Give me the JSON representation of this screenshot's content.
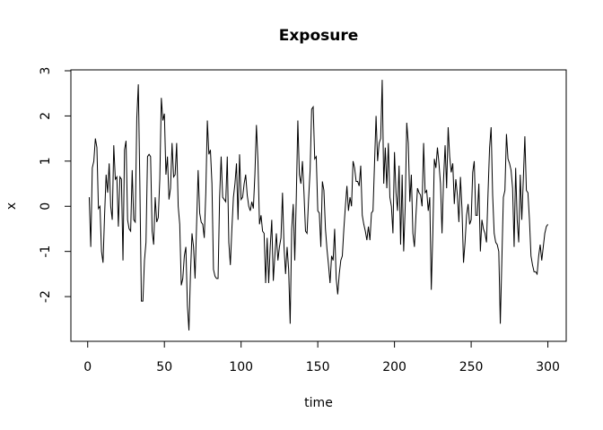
{
  "chart_data": {
    "type": "line",
    "title": "Exposure",
    "x_label": "time",
    "y_label": "x",
    "xlim": [
      -10.96,
      311.96
    ],
    "ylim": [
      -2.99,
      3.02
    ],
    "xticks": [
      0,
      50,
      100,
      150,
      200,
      250,
      300
    ],
    "yticks": [
      -2,
      -1,
      0,
      1,
      2,
      3
    ],
    "color": "#000000",
    "x": [
      1,
      2,
      3,
      4,
      5,
      6,
      7,
      8,
      9,
      10,
      11,
      12,
      13,
      14,
      15,
      16,
      17,
      18,
      19,
      20,
      21,
      22,
      23,
      24,
      25,
      26,
      27,
      28,
      29,
      30,
      31,
      32,
      33,
      34,
      35,
      36,
      37,
      38,
      39,
      40,
      41,
      42,
      43,
      44,
      45,
      46,
      47,
      48,
      49,
      50,
      51,
      52,
      53,
      54,
      55,
      56,
      57,
      58,
      59,
      60,
      61,
      62,
      63,
      64,
      65,
      66,
      67,
      68,
      69,
      70,
      71,
      72,
      73,
      74,
      75,
      76,
      77,
      78,
      79,
      80,
      81,
      82,
      83,
      84,
      85,
      86,
      87,
      88,
      89,
      90,
      91,
      92,
      93,
      94,
      95,
      96,
      97,
      98,
      99,
      100,
      101,
      102,
      103,
      104,
      105,
      106,
      107,
      108,
      109,
      110,
      111,
      112,
      113,
      114,
      115,
      116,
      117,
      118,
      119,
      120,
      121,
      122,
      123,
      124,
      125,
      126,
      127,
      128,
      129,
      130,
      131,
      132,
      133,
      134,
      135,
      136,
      137,
      138,
      139,
      140,
      141,
      142,
      143,
      144,
      145,
      146,
      147,
      148,
      149,
      150,
      151,
      152,
      153,
      154,
      155,
      156,
      157,
      158,
      159,
      160,
      161,
      162,
      163,
      164,
      165,
      166,
      167,
      168,
      169,
      170,
      171,
      172,
      173,
      174,
      175,
      176,
      177,
      178,
      179,
      180,
      181,
      182,
      183,
      184,
      185,
      186,
      187,
      188,
      189,
      190,
      191,
      192,
      193,
      194,
      195,
      196,
      197,
      198,
      199,
      200,
      201,
      202,
      203,
      204,
      205,
      206,
      207,
      208,
      209,
      210,
      211,
      212,
      213,
      214,
      215,
      216,
      217,
      218,
      219,
      220,
      221,
      222,
      223,
      224,
      225,
      226,
      227,
      228,
      229,
      230,
      231,
      232,
      233,
      234,
      235,
      236,
      237,
      238,
      239,
      240,
      241,
      242,
      243,
      244,
      245,
      246,
      247,
      248,
      249,
      250,
      251,
      252,
      253,
      254,
      255,
      256,
      257,
      258,
      259,
      260,
      261,
      262,
      263,
      264,
      265,
      266,
      267,
      268,
      269,
      270,
      271,
      272,
      273,
      274,
      275,
      276,
      277,
      278,
      279,
      280,
      281,
      282,
      283,
      284,
      285,
      286,
      287,
      288,
      289,
      290,
      291,
      292,
      293,
      294,
      295,
      296,
      297,
      298,
      299,
      300
    ],
    "values": [
      0.2,
      -0.9,
      0.85,
      1.0,
      1.5,
      1.3,
      -0.05,
      0.0,
      -1.0,
      -1.25,
      -0.2,
      0.7,
      0.3,
      0.95,
      0.0,
      -0.3,
      1.35,
      0.6,
      0.65,
      -0.45,
      0.65,
      0.6,
      -1.2,
      1.25,
      1.45,
      -0.3,
      -0.5,
      -0.55,
      0.8,
      -0.3,
      -0.35,
      1.95,
      2.7,
      0.5,
      -2.1,
      -2.1,
      -1.2,
      -0.8,
      1.1,
      1.15,
      1.1,
      -0.55,
      -0.85,
      0.2,
      -0.35,
      -0.25,
      0.6,
      2.4,
      1.9,
      2.05,
      0.7,
      1.1,
      0.15,
      0.4,
      1.4,
      0.65,
      0.7,
      1.4,
      0.0,
      -0.4,
      -1.75,
      -1.6,
      -1.1,
      -0.9,
      -2.2,
      -2.75,
      -1.5,
      -0.6,
      -0.9,
      -1.6,
      -0.4,
      0.8,
      -0.15,
      -0.35,
      -0.4,
      -0.7,
      0.3,
      1.9,
      1.15,
      1.25,
      0.5,
      -1.4,
      -1.55,
      -1.6,
      -1.6,
      0.2,
      1.1,
      0.2,
      0.15,
      0.1,
      1.1,
      -0.8,
      -1.3,
      -0.5,
      0.2,
      0.5,
      0.95,
      -0.3,
      1.15,
      0.15,
      0.2,
      0.5,
      0.7,
      0.25,
      0.0,
      -0.1,
      0.1,
      -0.05,
      0.7,
      1.8,
      1.0,
      -0.4,
      -0.2,
      -0.55,
      -0.6,
      -1.7,
      -0.7,
      -1.7,
      -0.9,
      -0.3,
      -1.65,
      -1.1,
      -0.6,
      -1.2,
      -0.9,
      -0.7,
      0.3,
      -0.9,
      -1.5,
      -0.9,
      -1.4,
      -2.6,
      -0.5,
      0.05,
      -1.2,
      0.2,
      1.9,
      0.7,
      0.5,
      1.0,
      0.3,
      -0.55,
      -0.6,
      0.15,
      0.8,
      2.15,
      2.2,
      1.05,
      1.1,
      -0.1,
      -0.15,
      -0.9,
      0.55,
      0.35,
      -0.5,
      -0.95,
      -1.3,
      -1.7,
      -1.1,
      -1.2,
      -0.5,
      -1.6,
      -1.95,
      -1.5,
      -1.2,
      -1.1,
      -0.5,
      0.0,
      0.45,
      -0.1,
      0.2,
      0.0,
      1.0,
      0.85,
      0.55,
      0.55,
      0.45,
      0.9,
      -0.2,
      -0.4,
      -0.55,
      -0.75,
      -0.45,
      -0.75,
      -0.15,
      -0.1,
      0.95,
      2.0,
      1.0,
      1.4,
      1.5,
      2.8,
      0.5,
      1.3,
      0.4,
      1.4,
      0.2,
      0.0,
      -0.6,
      1.2,
      0.3,
      -0.1,
      0.9,
      -0.85,
      0.7,
      -1.0,
      0.0,
      1.85,
      1.4,
      0.1,
      0.7,
      -0.6,
      -0.9,
      -0.2,
      0.4,
      0.3,
      0.25,
      0.0,
      1.4,
      0.3,
      0.35,
      -0.1,
      0.2,
      -1.85,
      -0.6,
      1.05,
      0.85,
      1.3,
      0.95,
      0.5,
      -0.6,
      0.6,
      1.35,
      0.4,
      1.75,
      1.1,
      0.75,
      0.95,
      0.05,
      0.6,
      0.25,
      -0.35,
      0.65,
      -0.05,
      -1.25,
      -0.8,
      -0.2,
      0.05,
      -0.4,
      -0.3,
      0.75,
      1.0,
      -0.2,
      -0.2,
      0.5,
      -1.0,
      -0.3,
      -0.5,
      -0.6,
      -0.8,
      0.3,
      1.3,
      1.75,
      0.25,
      -0.6,
      -0.8,
      -0.85,
      -1.0,
      -2.6,
      -1.2,
      0.2,
      0.35,
      1.6,
      1.05,
      0.95,
      0.8,
      0.4,
      -0.9,
      0.85,
      -0.3,
      -0.8,
      0.7,
      -0.3,
      0.6,
      1.55,
      0.35,
      0.3,
      -0.3,
      -1.1,
      -1.3,
      -1.45,
      -1.45,
      -1.5,
      -1.1,
      -0.85,
      -1.2,
      -0.9,
      -0.6,
      -0.45,
      -0.4
    ]
  }
}
